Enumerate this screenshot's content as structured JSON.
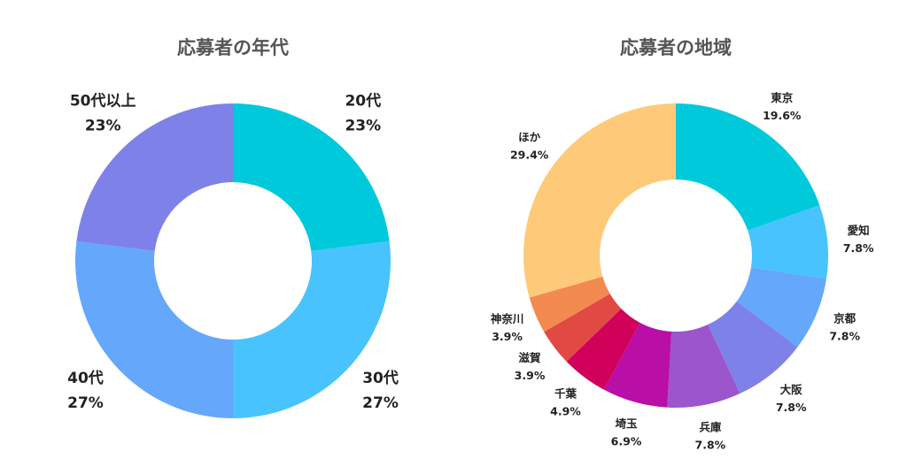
{
  "chart_data": [
    {
      "type": "pie",
      "title": "応募者の年代",
      "categories": [
        "20代",
        "30代",
        "40代",
        "50代以上"
      ],
      "value_labels": [
        "23%",
        "27%",
        "27%",
        "23%"
      ],
      "values": [
        23,
        27,
        27,
        23
      ],
      "colors": [
        "#00c9db",
        "#48c3fd",
        "#64a7fb",
        "#7e81e8"
      ]
    },
    {
      "type": "pie",
      "title": "応募者の地域",
      "categories": [
        "東京",
        "愛知",
        "京都",
        "大阪",
        "兵庫",
        "埼玉",
        "千葉",
        "滋賀",
        "神奈川",
        "ほか"
      ],
      "value_labels": [
        "19.6%",
        "7.8%",
        "7.8%",
        "7.8%",
        "7.8%",
        "6.9%",
        "4.9%",
        "3.9%",
        "3.9%",
        "29.4%"
      ],
      "values": [
        19.6,
        7.8,
        7.8,
        7.8,
        7.8,
        6.9,
        4.9,
        3.9,
        3.9,
        29.4
      ],
      "colors": [
        "#00c9db",
        "#48c3fd",
        "#64a7fb",
        "#7e81e8",
        "#9c55cc",
        "#b90fa6",
        "#d1005b",
        "#e04a43",
        "#f38a4f",
        "#feca7a"
      ]
    }
  ]
}
